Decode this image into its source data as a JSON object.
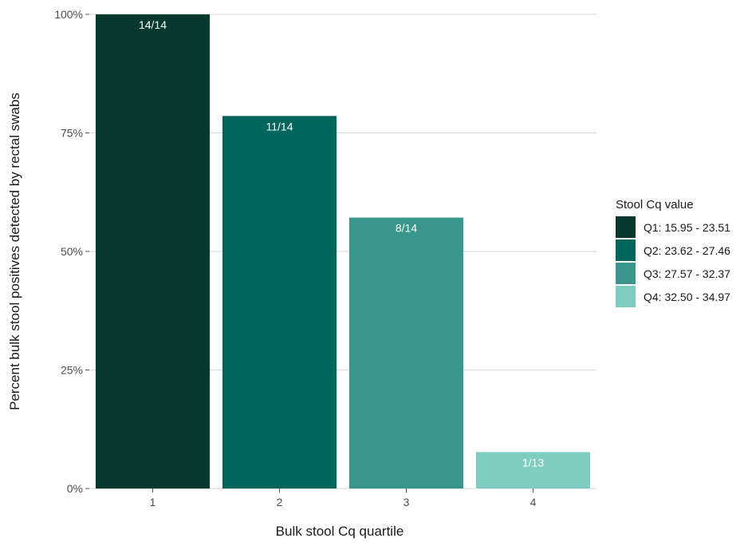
{
  "chart_data": {
    "type": "bar",
    "categories": [
      "1",
      "2",
      "3",
      "4"
    ],
    "values": [
      100,
      78.57,
      57.14,
      7.69
    ],
    "data_labels": [
      "14/14",
      "11/14",
      "8/14",
      "1/13"
    ],
    "colors": [
      "#06392d",
      "#00655a",
      "#3a968c",
      "#7fcdc1"
    ],
    "xlabel": "Bulk stool Cq quartile",
    "ylabel": "Percent bulk stool positives detected by rectal swabs",
    "ylim": [
      0,
      100
    ],
    "y_ticks": [
      0,
      25,
      50,
      75,
      100
    ],
    "y_tick_labels": [
      "0%",
      "25%",
      "50%",
      "75%",
      "100%"
    ],
    "grid": "horizontal",
    "legend": {
      "title": "Stool Cq value",
      "position": "right",
      "entries": [
        "Q1: 15.95 - 23.51",
        "Q2: 23.62 - 27.46",
        "Q3: 27.57 - 32.37",
        "Q4: 32.50 - 34.97"
      ]
    }
  }
}
